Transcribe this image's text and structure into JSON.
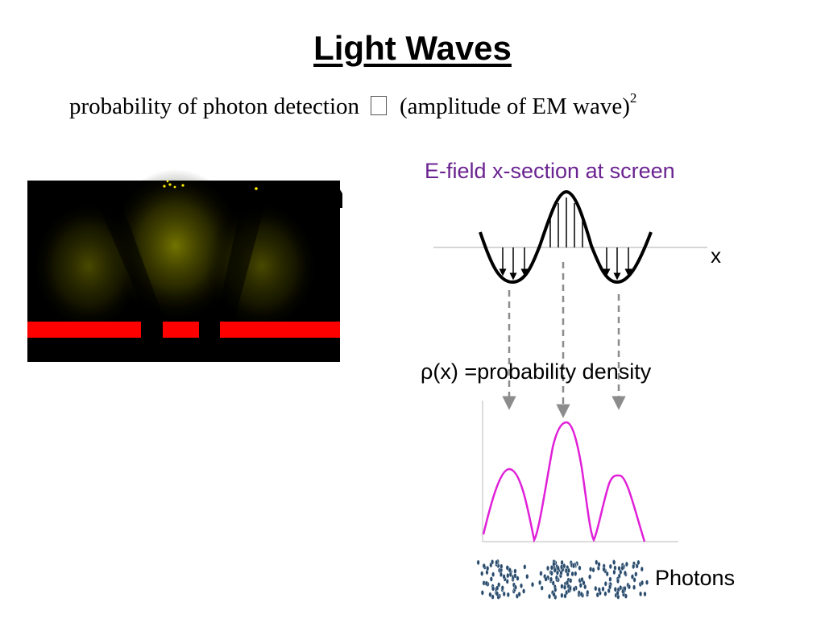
{
  "slide": {
    "title": "Light Waves",
    "equation": {
      "lhs": "probability of photon detection",
      "symbol": "proportional-to-glyph",
      "rhs": "(amplitude of EM wave)",
      "exponent": "2"
    }
  },
  "labels": {
    "efield": "E-field x-section at screen",
    "x_axis": "x",
    "density": "ρ(x) =probability density",
    "photons": "Photons"
  },
  "colors": {
    "efield_label": "#6a2390",
    "density_curve": "#e020d8",
    "slit_barrier": "#ff0000",
    "glow": "#8a8a00",
    "photon_dot": "#2a4a6a",
    "guide_arrow": "#8c8c8c"
  },
  "icons": {
    "efield_arrows": "arrow-icon",
    "guide_arrows": "dashed-arrow-icon"
  }
}
